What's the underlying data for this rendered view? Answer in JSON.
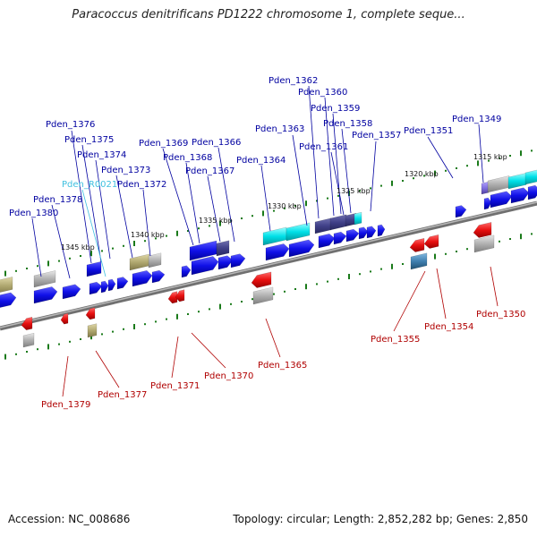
{
  "title": "Paracoccus denitrificans PD1222 chromosome 1, complete seque...",
  "footer": {
    "accession": "Accession: NC_008686",
    "summary": "Topology: circular; Length: 2,852,282 bp; Genes: 2,850"
  },
  "colors": {
    "backbone": "#888888",
    "forward_gene": "#1010e0",
    "reverse_gene": "#e01010",
    "rna_gene": "#00d8e0",
    "pseudo_gene": "#a8a070",
    "grey_gene": "#a8a8a8",
    "dark_gene": "#40408a",
    "forward_label": "#0000a0",
    "reverse_label": "#b00000",
    "rna_label": "#40c0e0",
    "tick": "#1a7a1a"
  },
  "scale_ticks": [
    "1345 kbp",
    "1340 kbp",
    "1335 kbp",
    "1330 kbp",
    "1325 kbp",
    "1320 kbp",
    "1315 kbp"
  ],
  "forward_labels": [
    "Pden_1362",
    "Pden_1360",
    "Pden_1359",
    "Pden_1358",
    "Pden_1349",
    "Pden_1376",
    "Pden_1363",
    "Pden_1357",
    "Pden_1351",
    "Pden_1375",
    "Pden_1361",
    "Pden_1369",
    "Pden_1366",
    "Pden_1374",
    "Pden_1368",
    "Pden_1364",
    "Pden_1373",
    "Pden_1367",
    "Pden_R0021",
    "Pden_1372",
    "Pden_1378",
    "Pden_1380"
  ],
  "reverse_labels": [
    "Pden_1350",
    "Pden_1354",
    "Pden_1355",
    "Pden_1365",
    "Pden_1370",
    "Pden_1371",
    "Pden_1377",
    "Pden_1379"
  ]
}
